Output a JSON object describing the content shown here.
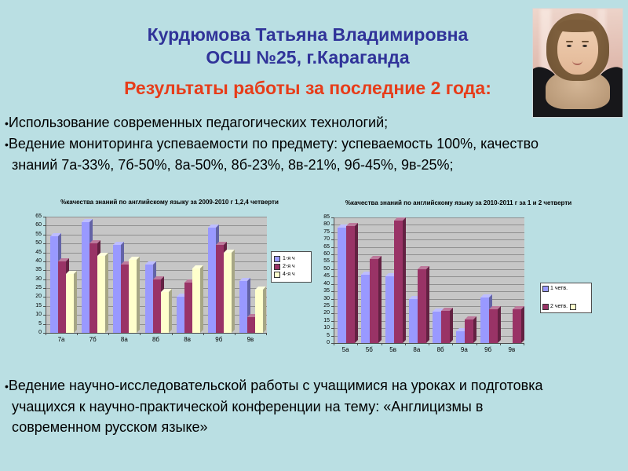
{
  "slide": {
    "background_color": "#badfe3",
    "header": {
      "title_line1": "Курдюмова Татьяна Владимировна",
      "title_line2": "ОСШ №25, г.Караганда",
      "title_color": "#303399",
      "subtitle": "Результаты работы за последние 2 года:",
      "subtitle_color": "#e73c19"
    },
    "bullet_marker": "•",
    "bullets_top": [
      "Использование современных педагогических технологий;",
      "Ведение мониторинга успеваемости по предмету: успеваемость 100%, качество знаний 7а-33%, 7б-50%, 8а-50%, 8б-23%, 8в-21%, 9б-45%, 9в-25%;"
    ],
    "bullets_bottom": [
      "Ведение научно-исследовательской работы с учащимися на уроках и подготовка учащихся к научно-практической конференции на тему: «Англицизмы в современном русском языке»"
    ]
  },
  "chart_data": [
    {
      "type": "bar",
      "title": "%качества знаний по английскому языку за 2009-2010 г 1,2,4 четверти",
      "categories": [
        "7а",
        "7б",
        "8а",
        "8б",
        "8в",
        "9б",
        "9в"
      ],
      "series": [
        {
          "name": "1-я ч",
          "color": "#9999ff",
          "values": [
            54,
            62,
            49,
            38,
            20,
            59,
            29
          ]
        },
        {
          "name": "2-я ч",
          "color": "#993366",
          "values": [
            40,
            50,
            38,
            30,
            28,
            49,
            9
          ]
        },
        {
          "name": "4-я ч",
          "color": "#ffffcc",
          "values": [
            33,
            43,
            41,
            23,
            36,
            45,
            24
          ]
        }
      ],
      "xlabel": "",
      "ylabel": "",
      "ylim": [
        0,
        65
      ],
      "ytick_step": 5,
      "grid": true,
      "legend_position": "right",
      "plot_background": "#c6c6c6"
    },
    {
      "type": "bar",
      "title": "%качества знаний по английскому языку за 2010-2011 г за 1 и 2 четверти",
      "categories": [
        "5а",
        "5б",
        "5в",
        "8а",
        "8б",
        "9а",
        "9б",
        "9в"
      ],
      "series": [
        {
          "name": "1 четв.",
          "color": "#9999ff",
          "values": [
            78,
            46,
            45,
            30,
            21,
            8,
            31,
            0
          ]
        },
        {
          "name": "2 четв.",
          "color": "#993366",
          "values": [
            79,
            57,
            83,
            50,
            22,
            16,
            23,
            23
          ]
        },
        {
          "name": "",
          "color": "#ffffcc",
          "values": []
        }
      ],
      "xlabel": "",
      "ylabel": "",
      "ylim": [
        0,
        85
      ],
      "ytick_step": 5,
      "grid": true,
      "legend_position": "right",
      "plot_background": "#c6c6c6"
    }
  ]
}
